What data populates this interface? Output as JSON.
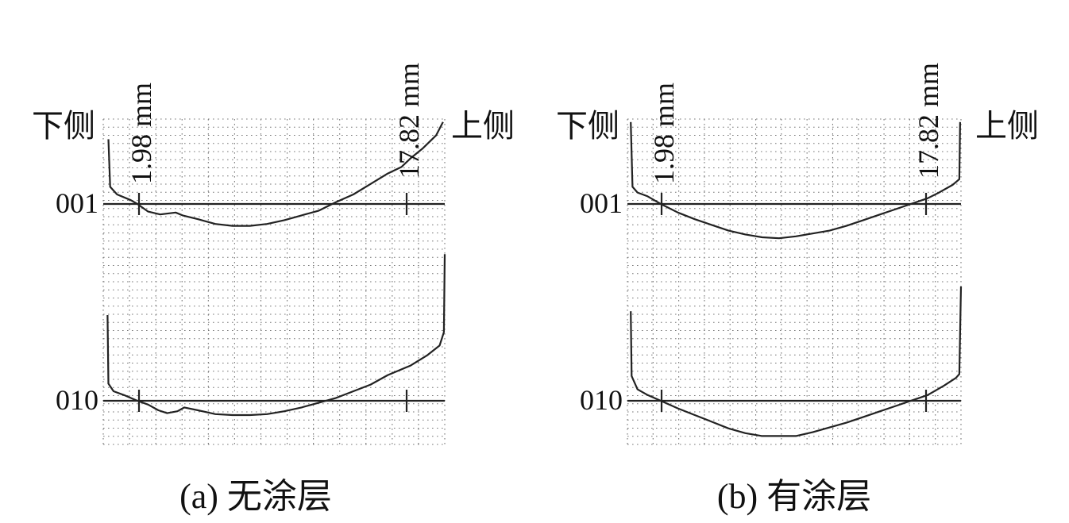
{
  "chart_data": [
    {
      "type": "line",
      "caption": "(a)  无涂层",
      "left_label": "下侧",
      "right_label": "上侧",
      "markers": [
        {
          "label": "1.98 mm",
          "value": 1.98
        },
        {
          "label": "17.82 mm",
          "value": 17.82
        }
      ],
      "x_range": [
        0,
        19.8
      ],
      "traces": [
        {
          "name": "001",
          "points": [
            [
              0.3,
              3.4
            ],
            [
              0.4,
              0.9
            ],
            [
              0.8,
              0.5
            ],
            [
              1.6,
              0.2
            ],
            [
              1.98,
              0
            ],
            [
              2.6,
              -0.4
            ],
            [
              3.3,
              -0.55
            ],
            [
              4.2,
              -0.45
            ],
            [
              4.6,
              -0.6
            ],
            [
              5.5,
              -0.8
            ],
            [
              6.5,
              -1.05
            ],
            [
              7.5,
              -1.15
            ],
            [
              8.5,
              -1.15
            ],
            [
              9.5,
              -1.05
            ],
            [
              10.5,
              -0.85
            ],
            [
              11.5,
              -0.6
            ],
            [
              12.5,
              -0.35
            ],
            [
              13.5,
              0.1
            ],
            [
              14.5,
              0.5
            ],
            [
              15.5,
              1.05
            ],
            [
              16.5,
              1.6
            ],
            [
              17.3,
              1.95
            ],
            [
              17.82,
              2.4
            ],
            [
              18.5,
              2.9
            ],
            [
              19.3,
              3.6
            ],
            [
              19.7,
              4.3
            ]
          ]
        },
        {
          "name": "010",
          "points": [
            [
              0.25,
              4.5
            ],
            [
              0.3,
              0.9
            ],
            [
              0.6,
              0.5
            ],
            [
              1.2,
              0.3
            ],
            [
              1.98,
              0
            ],
            [
              2.6,
              -0.2
            ],
            [
              3.2,
              -0.5
            ],
            [
              3.7,
              -0.65
            ],
            [
              4.3,
              -0.55
            ],
            [
              4.7,
              -0.35
            ],
            [
              5.5,
              -0.5
            ],
            [
              6.5,
              -0.7
            ],
            [
              7.5,
              -0.75
            ],
            [
              8.5,
              -0.75
            ],
            [
              9.5,
              -0.7
            ],
            [
              10.5,
              -0.55
            ],
            [
              11.5,
              -0.35
            ],
            [
              12.5,
              -0.1
            ],
            [
              13.5,
              0.15
            ],
            [
              14.5,
              0.5
            ],
            [
              15.5,
              0.85
            ],
            [
              16.5,
              1.35
            ],
            [
              17.82,
              1.85
            ],
            [
              18.8,
              2.4
            ],
            [
              19.5,
              2.9
            ],
            [
              19.75,
              3.6
            ],
            [
              19.8,
              7.7
            ]
          ]
        }
      ]
    },
    {
      "type": "line",
      "caption": "(b)  有涂层",
      "left_label": "下侧",
      "right_label": "上侧",
      "markers": [
        {
          "label": "1.98 mm",
          "value": 1.98
        },
        {
          "label": "17.82 mm",
          "value": 17.82
        }
      ],
      "x_range": [
        0,
        19.8
      ],
      "traces": [
        {
          "name": "001",
          "points": [
            [
              0.2,
              4.3
            ],
            [
              0.3,
              0.9
            ],
            [
              0.6,
              0.6
            ],
            [
              1.2,
              0.4
            ],
            [
              1.98,
              0
            ],
            [
              3,
              -0.45
            ],
            [
              4,
              -0.8
            ],
            [
              5,
              -1.1
            ],
            [
              6,
              -1.4
            ],
            [
              7,
              -1.6
            ],
            [
              8,
              -1.75
            ],
            [
              9,
              -1.8
            ],
            [
              10,
              -1.7
            ],
            [
              11,
              -1.55
            ],
            [
              12,
              -1.4
            ],
            [
              13,
              -1.15
            ],
            [
              14,
              -0.85
            ],
            [
              15,
              -0.55
            ],
            [
              16,
              -0.25
            ],
            [
              17.82,
              0.3
            ],
            [
              18.5,
              0.6
            ],
            [
              19.3,
              1.0
            ],
            [
              19.7,
              1.3
            ],
            [
              19.75,
              4.3
            ]
          ]
        },
        {
          "name": "010",
          "points": [
            [
              0.2,
              4.7
            ],
            [
              0.25,
              1.3
            ],
            [
              0.6,
              0.6
            ],
            [
              1.2,
              0.3
            ],
            [
              1.98,
              0
            ],
            [
              3,
              -0.4
            ],
            [
              4,
              -0.75
            ],
            [
              5,
              -1.1
            ],
            [
              6,
              -1.45
            ],
            [
              7,
              -1.7
            ],
            [
              8,
              -1.85
            ],
            [
              9,
              -1.85
            ],
            [
              10,
              -1.85
            ],
            [
              11,
              -1.65
            ],
            [
              12,
              -1.4
            ],
            [
              13,
              -1.15
            ],
            [
              14,
              -0.85
            ],
            [
              15,
              -0.55
            ],
            [
              16,
              -0.25
            ],
            [
              17.82,
              0.3
            ],
            [
              18.8,
              0.8
            ],
            [
              19.5,
              1.2
            ],
            [
              19.7,
              1.4
            ],
            [
              19.8,
              6.0
            ]
          ]
        }
      ]
    }
  ]
}
